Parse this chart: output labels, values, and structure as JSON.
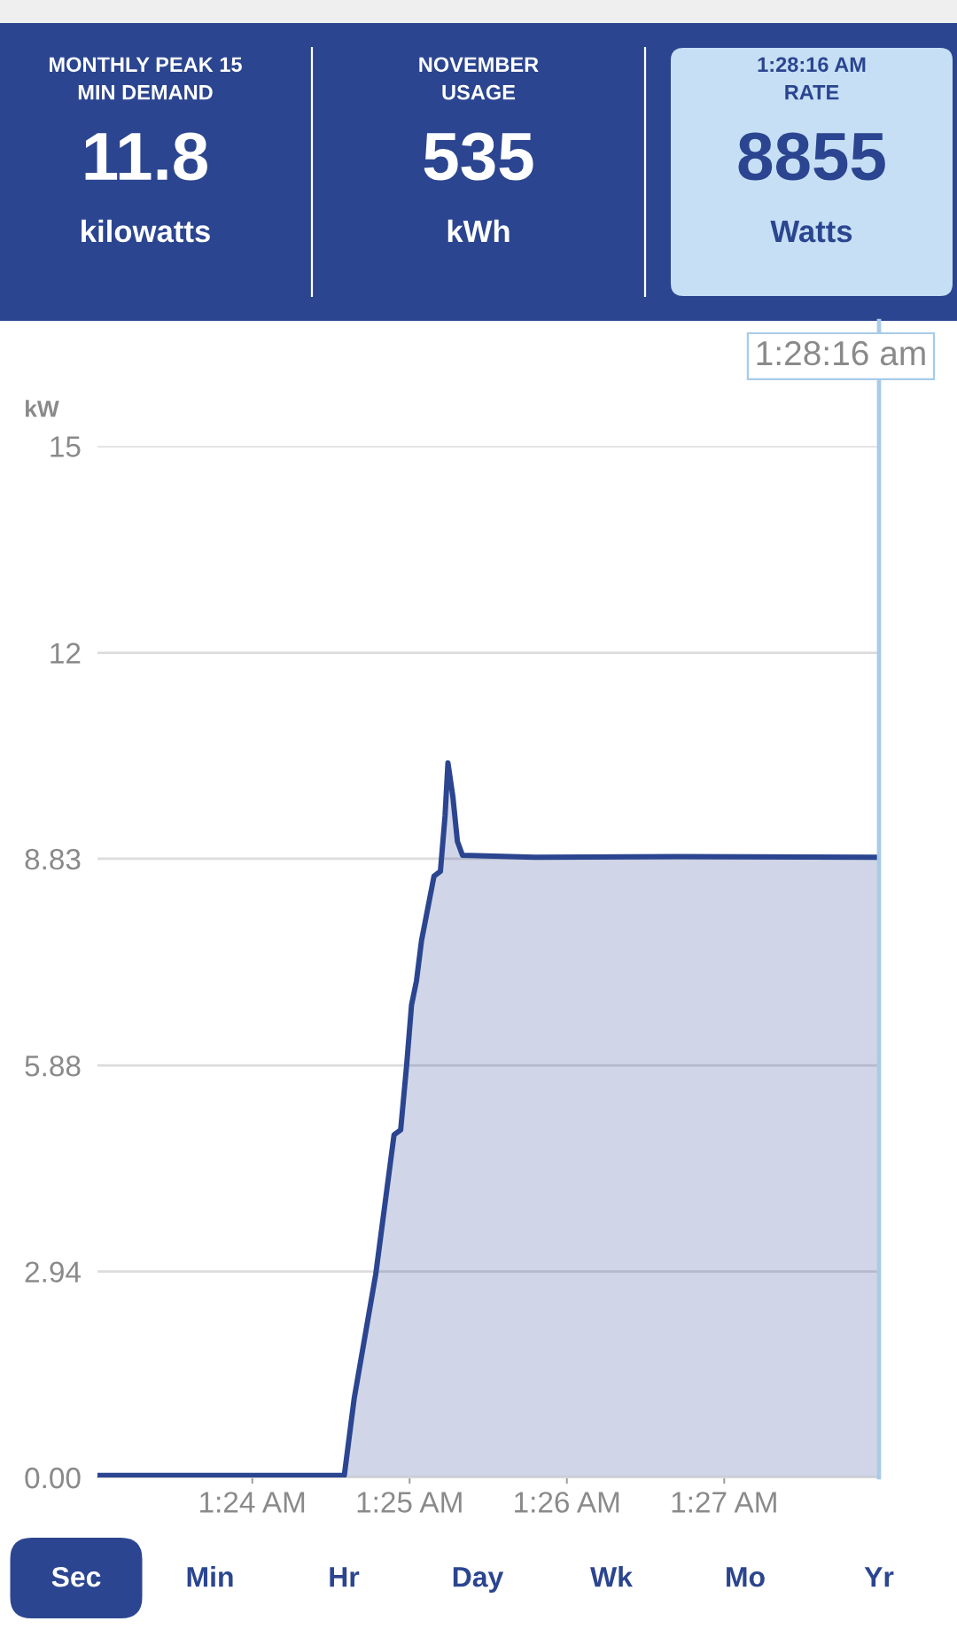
{
  "chart_data": [
    {
      "type": "other",
      "categories": [
        "MONTHLY PEAK 15\nMIN DEMAND",
        "NOVEMBER\nUSAGE",
        "1:28:16 AM\nRATE"
      ],
      "values": [
        11.8,
        535,
        8855
      ],
      "data_labels": true,
      "annotations": [
        "kilowatts",
        "kWh",
        "Watts"
      ],
      "colors": [
        "#2b4590",
        "#2b4590",
        "#c6dff5"
      ]
    },
    {
      "type": "area",
      "ylabel": "kW",
      "x": [
        1.3836,
        1.4,
        1.40975,
        1.4108,
        1.41308,
        1.41502,
        1.41572,
        1.41635,
        1.41687,
        1.4174,
        1.41793,
        1.41925,
        1.41993,
        1.42042,
        1.42073,
        1.42125,
        1.42173,
        1.42227,
        1.43,
        1.445,
        1.4664
      ],
      "series": [
        {
          "color": "#2b4590",
          "values": [
            0.03,
            0.03,
            0.03,
            1.13,
            2.9,
            4.89,
            4.96,
            5.88,
            6.74,
            7.09,
            7.66,
            8.58,
            8.65,
            9.44,
            10.2,
            9.72,
            9.08,
            8.88,
            8.85,
            8.86,
            8.85
          ]
        }
      ],
      "xlim": [
        1.3836,
        1.4664
      ],
      "ylim": [
        0,
        14.72
      ],
      "xticks": [
        {
          "value": 1.4,
          "label": "1:24 AM"
        },
        {
          "value": 1.41667,
          "label": "1:25 AM"
        },
        {
          "value": 1.43333,
          "label": "1:26 AM"
        },
        {
          "value": 1.45,
          "label": "1:27 AM"
        }
      ],
      "yticks": [
        {
          "value": 0,
          "label": "0.00"
        },
        2.94,
        5.88,
        8.83,
        {
          "value": 11.77,
          "label": "12"
        },
        {
          "value": 14.72,
          "label": "15"
        }
      ],
      "grid": "y",
      "ref_lines": [
        {
          "axis": "x",
          "value": 1.4664,
          "label": "1:28:16 am",
          "color": "#a8cbe8"
        }
      ]
    },
    {
      "type": "other",
      "categories": [
        "Sec",
        "Min",
        "Hr",
        "Day",
        "Wk",
        "Mo",
        "Yr"
      ],
      "colors": [
        "#2b4590",
        "#ffffff",
        "#ffffff",
        "#ffffff",
        "#ffffff",
        "#ffffff",
        "#ffffff"
      ]
    }
  ]
}
